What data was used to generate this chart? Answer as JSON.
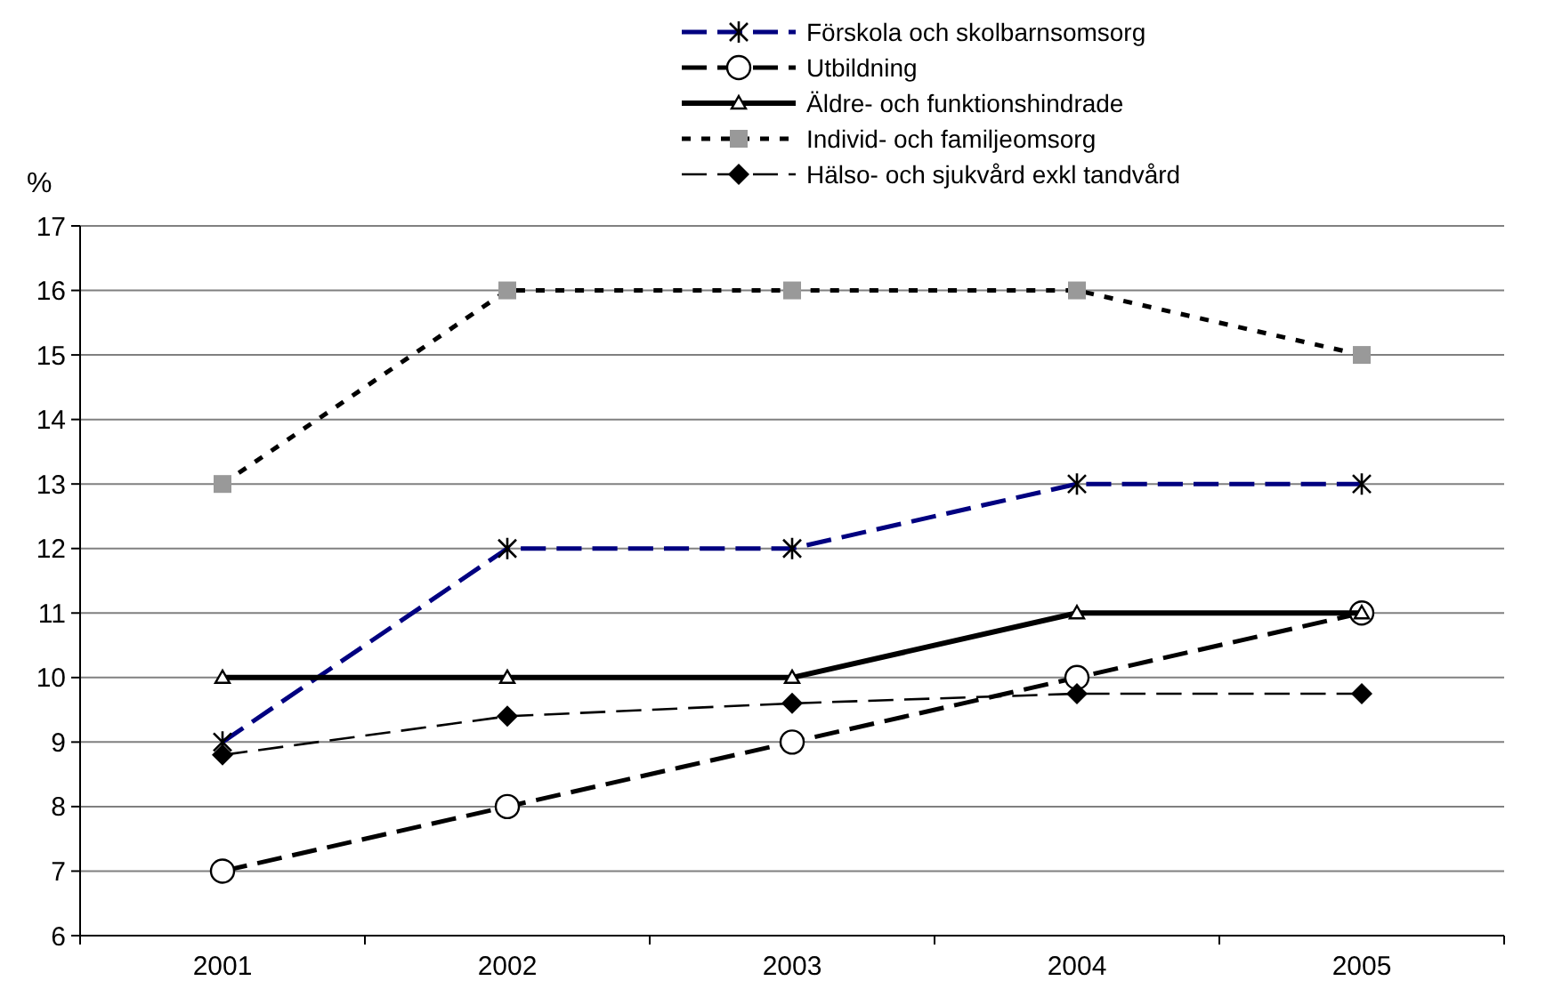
{
  "chart_data": {
    "type": "line",
    "ylabel": "%",
    "categories": [
      "2001",
      "2002",
      "2003",
      "2004",
      "2005"
    ],
    "ylim": [
      6,
      17
    ],
    "yticks": [
      6,
      7,
      8,
      9,
      10,
      11,
      12,
      13,
      14,
      15,
      16,
      17
    ],
    "grid": "y",
    "legend": "top right",
    "series": [
      {
        "name": "Förskola och skolbarnsomsorg",
        "color": "#000080",
        "values": [
          9,
          12,
          12,
          13,
          13
        ],
        "marker": "cross",
        "line_style": "dashed"
      },
      {
        "name": "Utbildning",
        "color": "#000000",
        "values": [
          7,
          8,
          9,
          10,
          11
        ],
        "marker": "circle",
        "line_style": "dashed"
      },
      {
        "name": "Äldre- och funktionshindrade",
        "color": "#000000",
        "values": [
          10,
          10,
          10,
          11,
          11
        ],
        "marker": "triangle",
        "line_style": "solid"
      },
      {
        "name": "Individ- och familjeomsorg",
        "color": "#000000",
        "values": [
          13,
          16,
          16,
          16,
          15
        ],
        "marker": "square",
        "line_style": "dotted"
      },
      {
        "name": "Hälso- och sjukvård exkl tandvård",
        "color": "#000000",
        "values": [
          8.8,
          9.4,
          9.6,
          9.75,
          9.75
        ],
        "marker": "diamond",
        "line_style": "dashed"
      }
    ]
  }
}
